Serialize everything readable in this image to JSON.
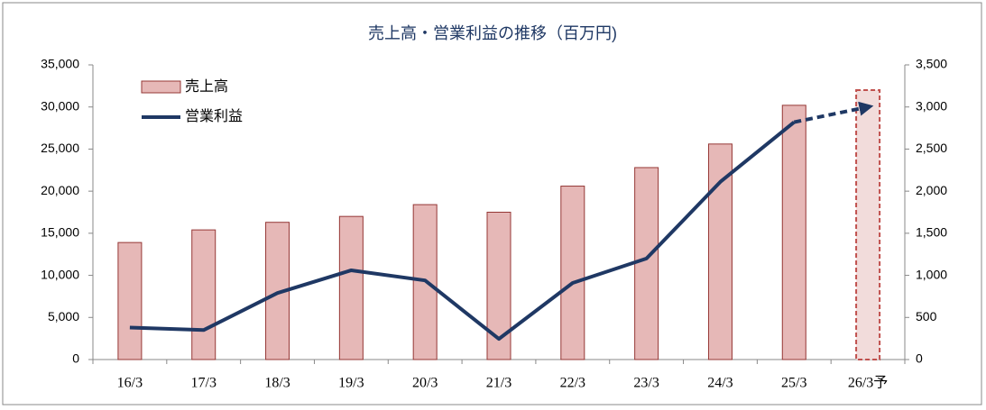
{
  "chart_data": {
    "type": "combo",
    "title": "売上高・営業利益の推移（百万円)",
    "categories": [
      "16/3",
      "17/3",
      "18/3",
      "19/3",
      "20/3",
      "21/3",
      "22/3",
      "23/3",
      "24/3",
      "25/3",
      "26/3予"
    ],
    "series": [
      {
        "name": "売上高",
        "type": "bar",
        "color": "#e6b8b7",
        "values": [
          13900,
          15400,
          16300,
          17000,
          18400,
          17500,
          20600,
          22800,
          25600,
          30200,
          32000
        ]
      },
      {
        "name": "営業利益",
        "type": "line",
        "axis": "y2",
        "color": "#1f3864",
        "values": [
          380,
          350,
          790,
          1060,
          940,
          245,
          910,
          1200,
          2110,
          2820,
          3000
        ]
      }
    ],
    "ylim": [
      0,
      35000
    ],
    "yticks": [
      0,
      {
        "value": 5000,
        "label": "5,000"
      },
      {
        "value": 10000,
        "label": "10,000"
      },
      {
        "value": 15000,
        "label": "15,000"
      },
      {
        "value": 20000,
        "label": "20,000"
      },
      {
        "value": 25000,
        "label": "25,000"
      },
      {
        "value": 30000,
        "label": "30,000"
      },
      {
        "value": 35000,
        "label": "35,000"
      }
    ],
    "y2lim": [
      0,
      3500
    ],
    "y2ticks": [
      0,
      500,
      {
        "value": 1000,
        "label": "1,000"
      },
      {
        "value": 1500,
        "label": "1,500"
      },
      {
        "value": 2000,
        "label": "2,000"
      },
      {
        "value": 2500,
        "label": "2,500"
      },
      {
        "value": 3000,
        "label": "3,000"
      },
      {
        "value": 3500,
        "label": "3,500"
      }
    ],
    "legend": "upper left"
  }
}
